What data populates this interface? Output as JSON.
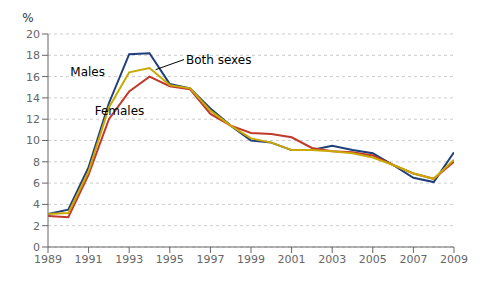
{
  "chart_data": {
    "type": "line",
    "y_label": "%",
    "x": [
      1989,
      1990,
      1991,
      1992,
      1993,
      1994,
      1995,
      1996,
      1997,
      1998,
      1999,
      2000,
      2001,
      2002,
      2003,
      2004,
      2005,
      2006,
      2007,
      2008,
      2009
    ],
    "series": [
      {
        "name": "Males",
        "color": "#1f3f7a",
        "values": [
          3.1,
          3.5,
          7.5,
          13.5,
          18.1,
          18.2,
          15.3,
          14.9,
          13.0,
          11.4,
          10.0,
          9.8,
          9.1,
          9.1,
          9.5,
          9.1,
          8.8,
          7.7,
          6.5,
          6.1,
          8.9
        ]
      },
      {
        "name": "Females",
        "color": "#c0392b",
        "values": [
          2.9,
          2.8,
          6.8,
          12.0,
          14.6,
          16.0,
          15.1,
          14.8,
          12.5,
          11.4,
          10.7,
          10.6,
          10.3,
          9.3,
          9.0,
          8.9,
          8.6,
          7.7,
          6.9,
          6.4,
          8.0
        ]
      },
      {
        "name": "Both sexes",
        "color": "#c9a800",
        "values": [
          3.1,
          3.2,
          7.1,
          13.1,
          16.4,
          16.8,
          15.2,
          14.9,
          12.8,
          11.4,
          10.2,
          9.8,
          9.1,
          9.1,
          9.0,
          8.8,
          8.4,
          7.7,
          6.9,
          6.4,
          8.2
        ]
      }
    ],
    "annotations": [
      {
        "text": "Males",
        "x": 1990.0,
        "y": 16.5
      },
      {
        "text": "Females",
        "x": 1991.2,
        "y": 12.8
      },
      {
        "text": "Both sexes",
        "x": 1995.7,
        "y": 17.6,
        "point_x": 1994.3,
        "point_y": 16.65
      }
    ],
    "xlim": [
      1989,
      2009
    ],
    "xticks": [
      1989,
      1991,
      1993,
      1995,
      1997,
      1999,
      2001,
      2003,
      2005,
      2007,
      2009
    ],
    "ylim": [
      0,
      20
    ],
    "yticks": [
      0,
      2,
      4,
      6,
      8,
      10,
      12,
      14,
      16,
      18,
      20
    ],
    "grid": true
  }
}
